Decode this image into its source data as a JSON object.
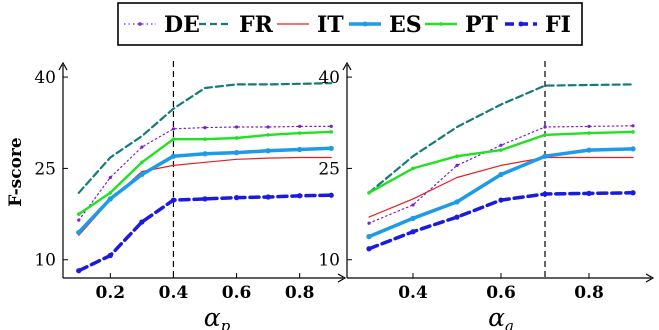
{
  "chart_data": {
    "type": "line",
    "ylabel": "F-score",
    "legend": {
      "placement": "top",
      "entries": [
        {
          "name": "DE",
          "color": "#7a1fd6",
          "dash": "dotted",
          "width": 1.2,
          "marker": "dot"
        },
        {
          "name": "FR",
          "color": "#147a7a",
          "dash": "dashed",
          "width": 2.2,
          "marker": "none"
        },
        {
          "name": "IT",
          "color": "#e62020",
          "dash": "solid",
          "width": 1.2,
          "marker": "none"
        },
        {
          "name": "ES",
          "color": "#1e9be8",
          "dash": "solid",
          "width": 3.5,
          "marker": "dot"
        },
        {
          "name": "PT",
          "color": "#22e022",
          "dash": "solid",
          "width": 2.4,
          "marker": "dot"
        },
        {
          "name": "FI",
          "color": "#1a1ae0",
          "dash": "bold-dashed",
          "width": 3.5,
          "marker": "dot"
        }
      ]
    },
    "panels": [
      {
        "xlabel_main": "α",
        "xlabel_sub": "p",
        "x_ticks": [
          "0.2",
          "0.4",
          "0.6",
          "0.8"
        ],
        "x_tick_values": [
          0.2,
          0.4,
          0.6,
          0.8
        ],
        "y_ticks": [
          "10",
          "25",
          "40"
        ],
        "y_tick_values": [
          10,
          25,
          40
        ],
        "xlim": [
          0.05,
          0.95
        ],
        "ylim": [
          7,
          41
        ],
        "vline": 0.4,
        "x": [
          0.1,
          0.2,
          0.3,
          0.4,
          0.5,
          0.6,
          0.7,
          0.8,
          0.9
        ],
        "series": [
          {
            "name": "DE",
            "values": [
              16.5,
              23.5,
              28.5,
              31.5,
              31.7,
              31.8,
              31.8,
              31.9,
              31.9
            ]
          },
          {
            "name": "FR",
            "values": [
              21.0,
              26.8,
              30.3,
              34.8,
              38.2,
              38.8,
              38.8,
              38.9,
              39.0
            ]
          },
          {
            "name": "IT",
            "values": [
              14.0,
              19.8,
              24.5,
              25.5,
              26.0,
              26.5,
              26.7,
              26.8,
              26.8
            ]
          },
          {
            "name": "ES",
            "values": [
              14.5,
              20.0,
              24.0,
              27.0,
              27.4,
              27.6,
              27.9,
              28.1,
              28.3
            ]
          },
          {
            "name": "PT",
            "values": [
              17.5,
              21.0,
              26.0,
              29.8,
              29.8,
              30.0,
              30.5,
              30.8,
              31.0
            ]
          },
          {
            "name": "FI",
            "values": [
              8.2,
              10.7,
              16.2,
              19.8,
              20.0,
              20.2,
              20.3,
              20.5,
              20.6
            ]
          }
        ]
      },
      {
        "xlabel_main": "α",
        "xlabel_sub": "a",
        "x_ticks": [
          "0.4",
          "0.6",
          "0.8"
        ],
        "x_tick_values": [
          0.4,
          0.6,
          0.8
        ],
        "y_ticks": [
          "10",
          "25",
          "40"
        ],
        "y_tick_values": [
          10,
          25,
          40
        ],
        "xlim": [
          0.25,
          0.95
        ],
        "ylim": [
          7,
          41
        ],
        "vline": 0.7,
        "x": [
          0.3,
          0.4,
          0.5,
          0.6,
          0.7,
          0.8,
          0.9
        ],
        "series": [
          {
            "name": "DE",
            "values": [
              16.0,
              19.0,
              25.5,
              28.8,
              31.8,
              31.9,
              32.0
            ]
          },
          {
            "name": "FR",
            "values": [
              21.0,
              27.0,
              31.8,
              35.5,
              38.6,
              38.7,
              38.8
            ]
          },
          {
            "name": "IT",
            "values": [
              17.0,
              20.0,
              23.5,
              25.5,
              26.8,
              26.8,
              26.8
            ]
          },
          {
            "name": "ES",
            "values": [
              13.8,
              16.8,
              19.5,
              24.0,
              27.0,
              28.0,
              28.2
            ]
          },
          {
            "name": "PT",
            "values": [
              21.0,
              25.0,
              27.0,
              28.0,
              30.5,
              30.8,
              31.0
            ]
          },
          {
            "name": "FI",
            "values": [
              11.8,
              14.6,
              17.0,
              19.8,
              20.8,
              20.9,
              21.0
            ]
          }
        ]
      }
    ]
  }
}
